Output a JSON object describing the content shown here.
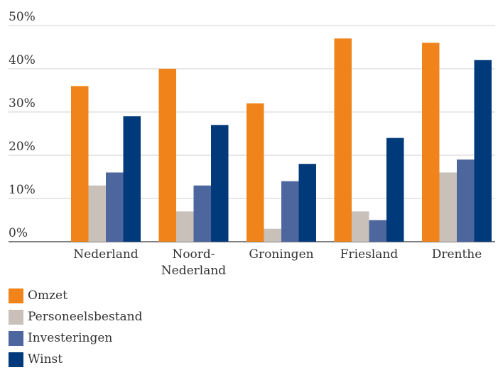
{
  "chart_data": {
    "type": "bar",
    "categories": [
      {
        "lines": [
          "Nederland"
        ]
      },
      {
        "lines": [
          "Noord-",
          "Nederland"
        ]
      },
      {
        "lines": [
          "Groningen"
        ]
      },
      {
        "lines": [
          "Friesland"
        ]
      },
      {
        "lines": [
          "Drenthe"
        ]
      }
    ],
    "series": [
      {
        "name": "Omzet",
        "color": "#F0841A",
        "values": [
          36,
          40,
          32,
          47,
          46
        ]
      },
      {
        "name": "Personeelsbestand",
        "color": "#C9C1B9",
        "values": [
          13,
          7,
          3,
          7,
          16
        ]
      },
      {
        "name": "Investeringen",
        "color": "#4D679E",
        "values": [
          16,
          13,
          14,
          5,
          19
        ]
      },
      {
        "name": "Winst",
        "color": "#003A7A",
        "values": [
          29,
          27,
          18,
          24,
          42
        ]
      }
    ],
    "yticks": [
      "0%",
      "10%",
      "20%",
      "30%",
      "40%",
      "50%"
    ],
    "ylim": [
      0,
      50
    ],
    "grid": true,
    "legend_position": "bottom-left",
    "title": "",
    "xlabel": "",
    "ylabel": ""
  }
}
